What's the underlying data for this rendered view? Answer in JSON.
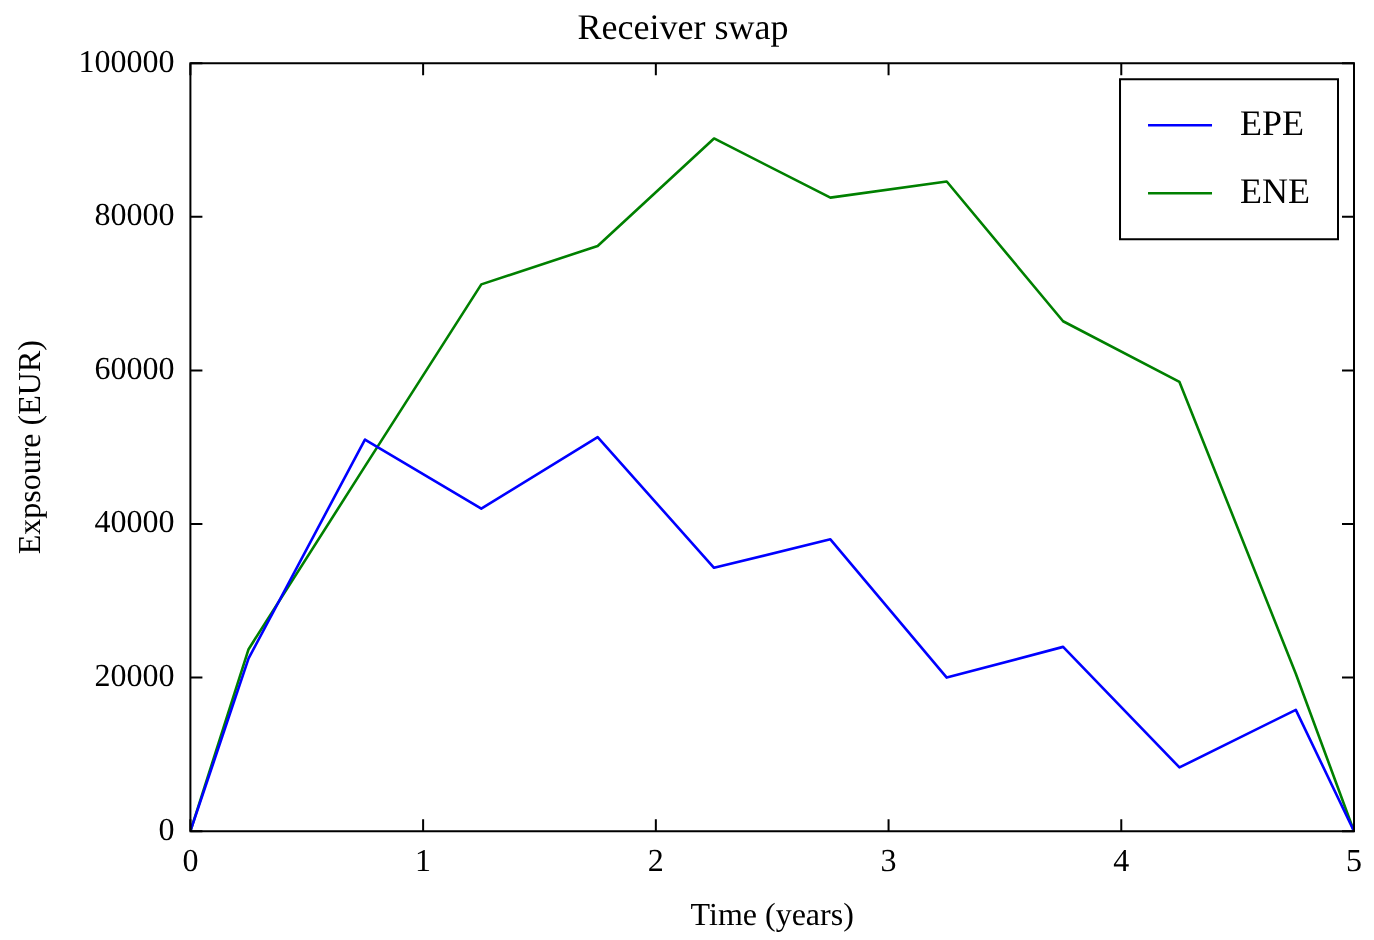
{
  "chart_data": {
    "type": "line",
    "title": "Receiver swap",
    "xlabel": "Time (years)",
    "ylabel": "Expsoure (EUR)",
    "x": [
      0,
      0.25,
      0.75,
      1.25,
      1.75,
      2.25,
      2.75,
      3.25,
      3.75,
      4.25,
      4.75,
      5
    ],
    "series": [
      {
        "name": "EPE",
        "color": "#0000ff",
        "values": [
          0,
          22500,
          51000,
          42000,
          51300,
          34300,
          38000,
          20000,
          24000,
          8300,
          15800,
          0
        ]
      },
      {
        "name": "ENE",
        "color": "#008000",
        "values": [
          0,
          23700,
          47500,
          71200,
          76200,
          90200,
          82500,
          84600,
          66400,
          58500,
          20500,
          0
        ]
      }
    ],
    "xlim": [
      0,
      5
    ],
    "xticks": [
      0,
      1,
      2,
      3,
      4,
      5
    ],
    "ylim": [
      0,
      100000
    ],
    "yticks": [
      0,
      20000,
      40000,
      60000,
      80000,
      100000
    ],
    "grid": false,
    "legend": "top right",
    "marker": "none",
    "line_style": "solid"
  }
}
